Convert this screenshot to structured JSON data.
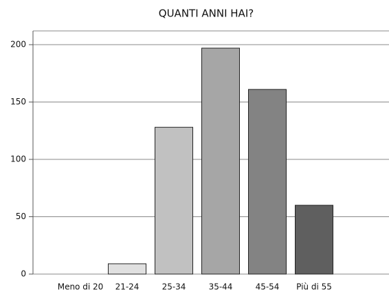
{
  "chart_data": {
    "type": "bar",
    "title": "QUANTI ANNI HAI?",
    "categories": [
      "Meno di 20",
      "21-24",
      "25-34",
      "35-44",
      "45-54",
      "Più di 55"
    ],
    "values": [
      0,
      9,
      128,
      197,
      161,
      60
    ],
    "colors": [
      "#f0f0f0",
      "#e0e0e0",
      "#c1c1c1",
      "#a6a6a6",
      "#838383",
      "#5f5f5f"
    ],
    "ylim": [
      0,
      212
    ],
    "yticks": [
      0,
      50,
      100,
      150,
      200
    ],
    "grid": true
  }
}
